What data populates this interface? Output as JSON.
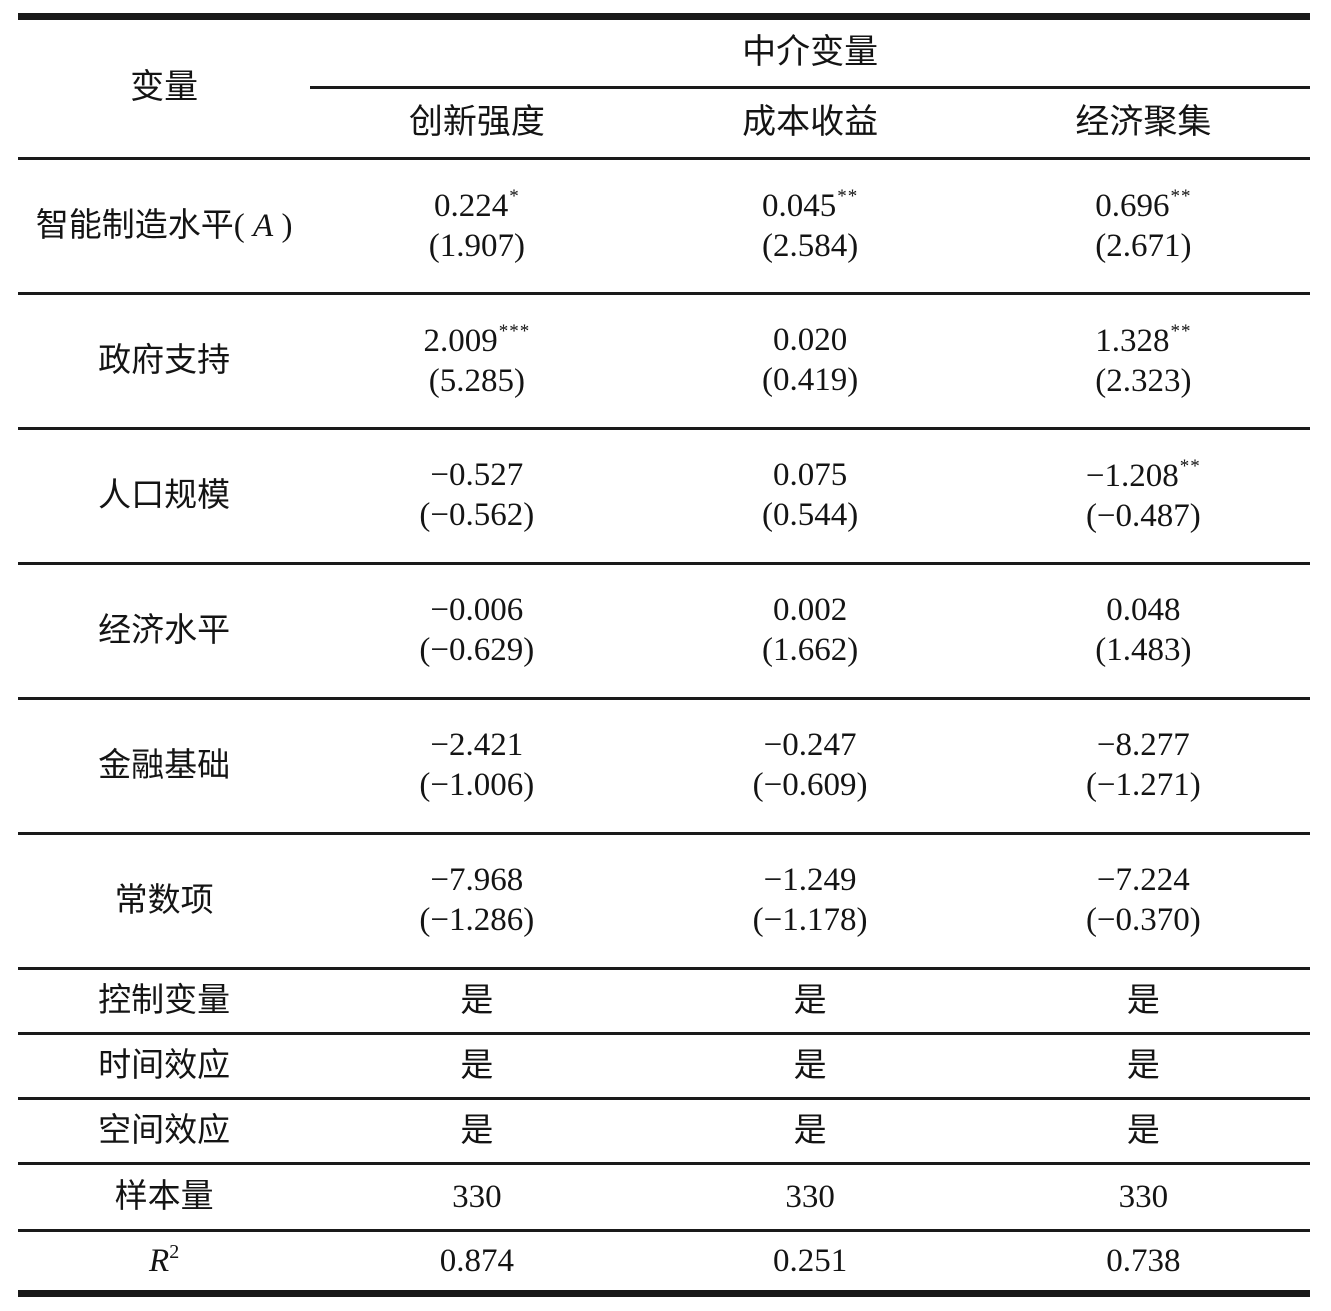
{
  "table": {
    "header": {
      "variable_label": "变量",
      "group_label": "中介变量",
      "subcols": [
        "创新强度",
        "成本收益",
        "经济聚集"
      ]
    },
    "rows": [
      {
        "type": "coef",
        "label": "智能制造水平",
        "label_var": "A",
        "cells": [
          {
            "value": "0.224",
            "stars": "*",
            "t": "(1.907)"
          },
          {
            "value": "0.045",
            "stars": "**",
            "t": "(2.584)"
          },
          {
            "value": "0.696",
            "stars": "**",
            "t": "(2.671)"
          }
        ]
      },
      {
        "type": "coef",
        "label": "政府支持",
        "cells": [
          {
            "value": "2.009",
            "stars": "***",
            "t": "(5.285)"
          },
          {
            "value": "0.020",
            "stars": "",
            "t": "(0.419)"
          },
          {
            "value": "1.328",
            "stars": "**",
            "t": "(2.323)"
          }
        ]
      },
      {
        "type": "coef",
        "label": "人口规模",
        "cells": [
          {
            "value": "−0.527",
            "stars": "",
            "t": "(−0.562)"
          },
          {
            "value": "0.075",
            "stars": "",
            "t": "(0.544)"
          },
          {
            "value": "−1.208",
            "stars": "**",
            "t": "(−0.487)"
          }
        ]
      },
      {
        "type": "coef",
        "label": "经济水平",
        "cells": [
          {
            "value": "−0.006",
            "stars": "",
            "t": "(−0.629)"
          },
          {
            "value": "0.002",
            "stars": "",
            "t": "(1.662)"
          },
          {
            "value": "0.048",
            "stars": "",
            "t": "(1.483)"
          }
        ]
      },
      {
        "type": "coef",
        "label": "金融基础",
        "cells": [
          {
            "value": "−2.421",
            "stars": "",
            "t": "(−1.006)"
          },
          {
            "value": "−0.247",
            "stars": "",
            "t": "(−0.609)"
          },
          {
            "value": "−8.277",
            "stars": "",
            "t": "(−1.271)"
          }
        ]
      },
      {
        "type": "coef",
        "label": "常数项",
        "cells": [
          {
            "value": "−7.968",
            "stars": "",
            "t": "(−1.286)"
          },
          {
            "value": "−1.249",
            "stars": "",
            "t": "(−1.178)"
          },
          {
            "value": "−7.224",
            "stars": "",
            "t": "(−0.370)"
          }
        ]
      },
      {
        "type": "simple",
        "variant": "simple",
        "label": "控制变量",
        "values": [
          "是",
          "是",
          "是"
        ]
      },
      {
        "type": "simple",
        "variant": "simple",
        "label": "时间效应",
        "values": [
          "是",
          "是",
          "是"
        ]
      },
      {
        "type": "simple",
        "variant": "simple",
        "label": "空间效应",
        "values": [
          "是",
          "是",
          "是"
        ]
      },
      {
        "type": "simple",
        "variant": "sample",
        "label": "样本量",
        "values": [
          "330",
          "330",
          "330"
        ]
      },
      {
        "type": "simple",
        "variant": "r2",
        "label": "R",
        "label_sup": "2",
        "label_italic": true,
        "values": [
          "0.874",
          "0.251",
          "0.738"
        ]
      }
    ]
  }
}
